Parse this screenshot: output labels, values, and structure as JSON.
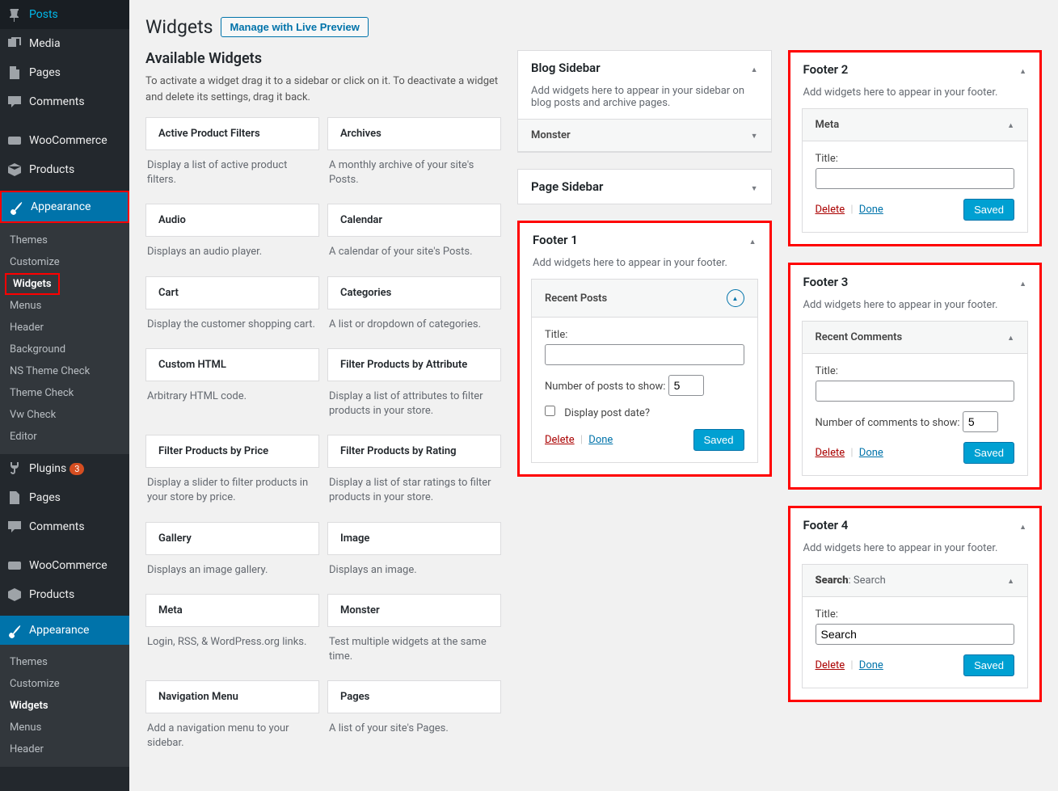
{
  "nav": {
    "posts": "Posts",
    "media": "Media",
    "pages": "Pages",
    "comments": "Comments",
    "woocommerce": "WooCommerce",
    "products": "Products",
    "appearance": "Appearance",
    "plugins": "Plugins",
    "plugins_badge": "3",
    "pages2": "Pages",
    "comments2": "Comments",
    "woocommerce2": "WooCommerce",
    "products2": "Products",
    "appearance2": "Appearance"
  },
  "submenu": {
    "themes": "Themes",
    "customize": "Customize",
    "widgets": "Widgets",
    "menus": "Menus",
    "header": "Header",
    "background": "Background",
    "ns_theme_check": "NS Theme Check",
    "theme_check": "Theme Check",
    "vw_check": "Vw Check",
    "editor": "Editor"
  },
  "submenu2": {
    "themes": "Themes",
    "customize": "Customize",
    "widgets": "Widgets",
    "menus": "Menus",
    "header": "Header"
  },
  "header": {
    "title": "Widgets",
    "live_preview": "Manage with Live Preview"
  },
  "available": {
    "title": "Available Widgets",
    "desc": "To activate a widget drag it to a sidebar or click on it. To deactivate a widget and delete its settings, drag it back.",
    "items": [
      {
        "name": "Active Product Filters",
        "desc": "Display a list of active product filters."
      },
      {
        "name": "Archives",
        "desc": "A monthly archive of your site's Posts."
      },
      {
        "name": "Audio",
        "desc": "Displays an audio player."
      },
      {
        "name": "Calendar",
        "desc": "A calendar of your site's Posts."
      },
      {
        "name": "Cart",
        "desc": "Display the customer shopping cart."
      },
      {
        "name": "Categories",
        "desc": "A list or dropdown of categories."
      },
      {
        "name": "Custom HTML",
        "desc": "Arbitrary HTML code."
      },
      {
        "name": "Filter Products by Attribute",
        "desc": "Display a list of attributes to filter products in your store."
      },
      {
        "name": "Filter Products by Price",
        "desc": "Display a slider to filter products in your store by price."
      },
      {
        "name": "Filter Products by Rating",
        "desc": "Display a list of star ratings to filter products in your store."
      },
      {
        "name": "Gallery",
        "desc": "Displays an image gallery."
      },
      {
        "name": "Image",
        "desc": "Displays an image."
      },
      {
        "name": "Meta",
        "desc": "Login, RSS, & WordPress.org links."
      },
      {
        "name": "Monster",
        "desc": "Test multiple widgets at the same time."
      },
      {
        "name": "Navigation Menu",
        "desc": "Add a navigation menu to your sidebar."
      },
      {
        "name": "Pages",
        "desc": "A list of your site's Pages."
      }
    ]
  },
  "areas": {
    "blog_sidebar": {
      "title": "Blog Sidebar",
      "desc": "Add widgets here to appear in your sidebar on blog posts and archive pages.",
      "monster": "Monster"
    },
    "page_sidebar": {
      "title": "Page Sidebar"
    },
    "footer1": {
      "title": "Footer 1",
      "desc": "Add widgets here to appear in your footer.",
      "widget_title": "Recent Posts",
      "title_label": "Title:",
      "title_value": "",
      "num_label": "Number of posts to show:",
      "num_value": "5",
      "checkbox_label": "Display post date?",
      "delete": "Delete",
      "done": "Done",
      "saved": "Saved"
    },
    "footer2": {
      "title": "Footer 2",
      "desc": "Add widgets here to appear in your footer.",
      "widget_title": "Meta",
      "title_label": "Title:",
      "title_value": "",
      "delete": "Delete",
      "done": "Done",
      "saved": "Saved"
    },
    "footer3": {
      "title": "Footer 3",
      "desc": "Add widgets here to appear in your footer.",
      "widget_title": "Recent Comments",
      "title_label": "Title:",
      "title_value": "",
      "num_label": "Number of comments to show:",
      "num_value": "5",
      "delete": "Delete",
      "done": "Done",
      "saved": "Saved"
    },
    "footer4": {
      "title": "Footer 4",
      "desc": "Add widgets here to appear in your footer.",
      "widget_title_prefix": "Search",
      "widget_title_suffix": ": Search",
      "title_label": "Title:",
      "title_value": "Search",
      "delete": "Delete",
      "done": "Done",
      "saved": "Saved"
    }
  },
  "colors": {
    "highlight": "#ff0000",
    "primary": "#0073aa",
    "sidebar_bg": "#23282d"
  }
}
